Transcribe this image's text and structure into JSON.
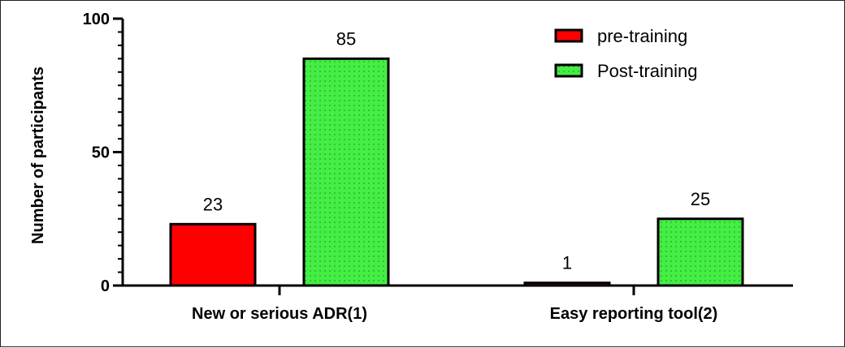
{
  "chart_data": {
    "type": "bar",
    "title": "",
    "xlabel": "",
    "ylabel": "Number of participants",
    "ylim": [
      0,
      100
    ],
    "yticks": [
      0,
      50,
      100
    ],
    "categories": [
      "New or serious ADR(1)",
      "Easy reporting tool(2)"
    ],
    "series": [
      {
        "name": "pre-training",
        "values": [
          23,
          1
        ],
        "color": "#ff0000",
        "pattern": "solid"
      },
      {
        "name": "Post-training",
        "values": [
          85,
          25
        ],
        "color": "#44ee44",
        "pattern": "dotted"
      }
    ],
    "data_labels": true,
    "legend_position": "top-right",
    "grid": false
  }
}
